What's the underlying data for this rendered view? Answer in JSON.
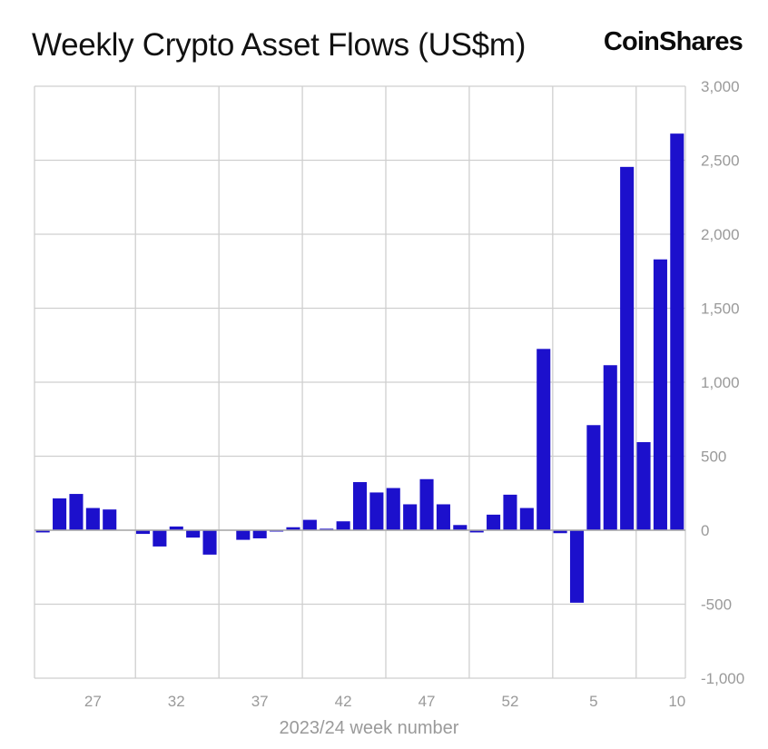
{
  "header": {
    "title": "Weekly Crypto Asset Flows (US$m)",
    "brand": "CoinShares"
  },
  "chart_data": {
    "type": "bar",
    "title": "Weekly Crypto Asset Flows (US$m)",
    "xlabel": "2023/24 week number",
    "ylabel": "",
    "ylim": [
      -1000,
      3000
    ],
    "yticks": [
      3000,
      2500,
      2000,
      1500,
      1000,
      500,
      0,
      -500,
      -1000
    ],
    "ytick_labels": [
      "3,000",
      "2,500",
      "2,000",
      "1,500",
      "1,000",
      "500",
      "0",
      "-500",
      "-1,000"
    ],
    "xtick_labels": [
      "27",
      "32",
      "37",
      "42",
      "47",
      "52",
      "5",
      "10"
    ],
    "y_axis_position": "right",
    "grid": true,
    "bar_color": "#1c10cc",
    "categories": [
      "24",
      "25",
      "26",
      "27",
      "28",
      "29",
      "30",
      "31",
      "32",
      "33",
      "34",
      "35",
      "36",
      "37",
      "38",
      "39",
      "40",
      "41",
      "42",
      "43",
      "44",
      "45",
      "46",
      "47",
      "48",
      "49",
      "50",
      "51",
      "52",
      "1",
      "2",
      "3",
      "4",
      "5",
      "6",
      "7",
      "8",
      "9",
      "10"
    ],
    "values": [
      -15,
      215,
      245,
      150,
      140,
      0,
      -25,
      -110,
      25,
      -50,
      -165,
      0,
      -65,
      -55,
      -5,
      20,
      70,
      10,
      60,
      325,
      255,
      285,
      175,
      345,
      175,
      35,
      -15,
      105,
      240,
      150,
      1225,
      -20,
      -490,
      710,
      1115,
      2455,
      595,
      1830,
      2680
    ]
  }
}
